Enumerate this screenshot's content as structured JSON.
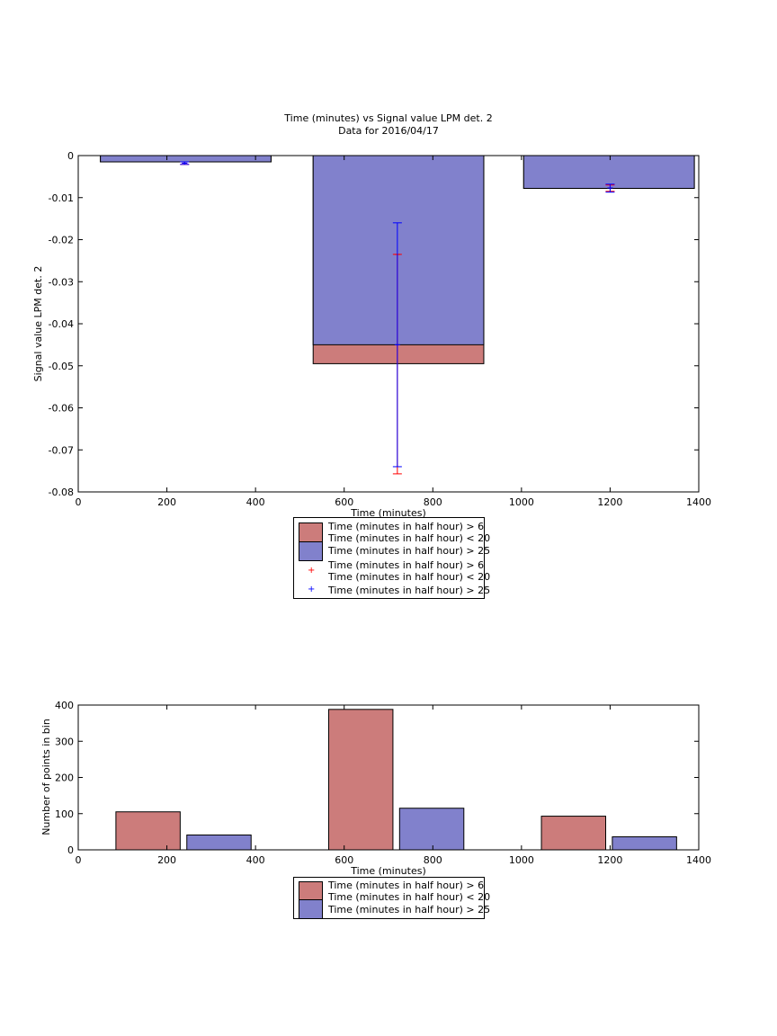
{
  "colors": {
    "red_series": "#cc7c7b",
    "blue_series": "#8181cc",
    "red_marker": "#ff0000",
    "blue_marker": "#0000ff"
  },
  "chart_data": [
    {
      "type": "bar",
      "title": "Time (minutes) vs Signal value LPM det. 2",
      "subtitle": "Data for 2016/04/17",
      "xlabel": "Time (minutes)",
      "ylabel": "Signal value LPM det. 2",
      "xlim": [
        0,
        1400
      ],
      "ylim": [
        -0.08,
        0
      ],
      "xticks": [
        "0",
        "200",
        "400",
        "600",
        "800",
        "1000",
        "1200",
        "1400"
      ],
      "yticks": [
        "0",
        "-0.01",
        "-0.02",
        "-0.03",
        "-0.04",
        "-0.05",
        "-0.06",
        "-0.07",
        "-0.08"
      ],
      "bins": [
        {
          "x_range": [
            50,
            435
          ],
          "red": -0.0015,
          "blue": -0.0015
        },
        {
          "x_range": [
            530,
            915
          ],
          "red": -0.0495,
          "blue": -0.045
        },
        {
          "x_range": [
            1005,
            1390
          ],
          "red": -0.0078,
          "blue": -0.0078
        }
      ],
      "error_bars": [
        {
          "series": "red",
          "x": 240,
          "center": -0.0018,
          "low": -0.0021,
          "high": -0.0015
        },
        {
          "series": "blue",
          "x": 240,
          "center": -0.0018,
          "low": -0.0021,
          "high": -0.0015
        },
        {
          "series": "red",
          "x": 720,
          "center": -0.0235,
          "low": -0.0757,
          "high": -0.0235
        },
        {
          "series": "blue",
          "x": 720,
          "center": -0.045,
          "low": -0.074,
          "high": -0.016
        },
        {
          "series": "red",
          "x": 1200,
          "center": -0.0077,
          "low": -0.0085,
          "high": -0.007
        },
        {
          "series": "blue",
          "x": 1200,
          "center": -0.0077,
          "low": -0.0087,
          "high": -0.0068
        }
      ],
      "legend": [
        {
          "kind": "patch",
          "series": "red",
          "label": "Time (minutes in half hour) > 6\nTime (minutes in half hour) < 20"
        },
        {
          "kind": "patch",
          "series": "blue",
          "label": "Time (minutes in half hour) > 25"
        },
        {
          "kind": "marker",
          "series": "red",
          "label": "Time (minutes in half hour) > 6\nTime (minutes in half hour) < 20"
        },
        {
          "kind": "marker",
          "series": "blue",
          "label": "Time (minutes in half hour) > 25"
        }
      ],
      "legend_placement": "below"
    },
    {
      "type": "bar",
      "title": "",
      "xlabel": "Time (minutes)",
      "ylabel": "Number of points in bin",
      "xlim": [
        0,
        1400
      ],
      "ylim": [
        0,
        400
      ],
      "xticks": [
        "0",
        "200",
        "400",
        "600",
        "800",
        "1000",
        "1200",
        "1400"
      ],
      "yticks": [
        "0",
        "100",
        "200",
        "300",
        "400"
      ],
      "bars": [
        {
          "series": "red",
          "x_range": [
            85,
            230
          ],
          "value": 105
        },
        {
          "series": "blue",
          "x_range": [
            245,
            390
          ],
          "value": 41
        },
        {
          "series": "red",
          "x_range": [
            565,
            710
          ],
          "value": 388
        },
        {
          "series": "blue",
          "x_range": [
            725,
            870
          ],
          "value": 115
        },
        {
          "series": "red",
          "x_range": [
            1045,
            1190
          ],
          "value": 93
        },
        {
          "series": "blue",
          "x_range": [
            1205,
            1350
          ],
          "value": 36
        }
      ],
      "legend": [
        {
          "kind": "patch",
          "series": "red",
          "label": "Time (minutes in half hour) > 6\nTime (minutes in half hour) < 20"
        },
        {
          "kind": "patch",
          "series": "blue",
          "label": "Time (minutes in half hour) > 25"
        }
      ],
      "legend_placement": "below"
    }
  ]
}
